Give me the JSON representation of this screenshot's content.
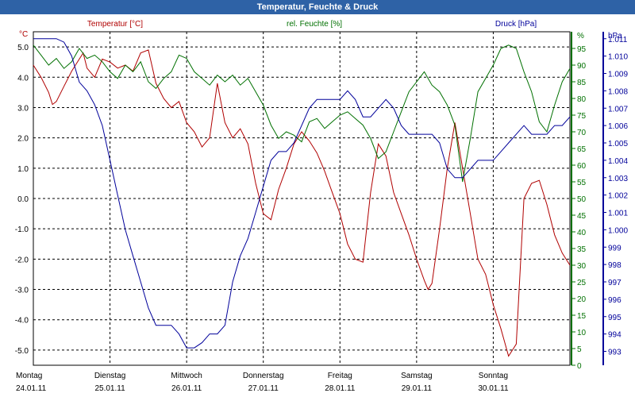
{
  "title": "Temperatur, Feuchte & Druck",
  "chart_data": {
    "type": "line",
    "title": "Temperatur, Feuchte & Druck",
    "x_labels": [
      {
        "day": "Montag",
        "date": "24.01.11"
      },
      {
        "day": "Dienstag",
        "date": "25.01.11"
      },
      {
        "day": "Mittwoch",
        "date": "26.01.11"
      },
      {
        "day": "Donnerstag",
        "date": "27.01.11"
      },
      {
        "day": "Freitag",
        "date": "28.01.11"
      },
      {
        "day": "Samstag",
        "date": "29.01.11"
      },
      {
        "day": "Sonntag",
        "date": "30.01.11"
      }
    ],
    "x_range": [
      0,
      7
    ],
    "grid": true,
    "axes": {
      "temperature": {
        "unit": "°C",
        "range": [
          -5.5,
          5.5
        ],
        "ticks": [
          "5.0",
          "4.0",
          "3.0",
          "2.0",
          "1.0",
          "0.0",
          "-1.0",
          "-2.0",
          "-3.0",
          "-4.0",
          "-5.0"
        ],
        "tick_values": [
          5,
          4,
          3,
          2,
          1,
          0,
          -1,
          -2,
          -3,
          -4,
          -5
        ],
        "color": "#b00000"
      },
      "humidity": {
        "unit": "%",
        "range": [
          0,
          100
        ],
        "ticks": [
          "95",
          "90",
          "85",
          "80",
          "75",
          "70",
          "65",
          "60",
          "55",
          "50",
          "45",
          "40",
          "35",
          "30",
          "25",
          "20",
          "15",
          "10",
          "5",
          "0"
        ],
        "tick_values": [
          95,
          90,
          85,
          80,
          75,
          70,
          65,
          60,
          55,
          50,
          45,
          40,
          35,
          30,
          25,
          20,
          15,
          10,
          5,
          0
        ],
        "color": "#007000"
      },
      "pressure": {
        "unit": "hPa",
        "range": [
          992.2,
          1011.4
        ],
        "ticks": [
          "1.011",
          "1.010",
          "1.009",
          "1.008",
          "1.007",
          "1.006",
          "1.005",
          "1.004",
          "1.003",
          "1.002",
          "1.001",
          "1.000",
          "999",
          "998",
          "997",
          "996",
          "995",
          "994",
          "993"
        ],
        "tick_values": [
          1011,
          1010,
          1009,
          1008,
          1007,
          1006,
          1005,
          1004,
          1003,
          1002,
          1001,
          1000,
          999,
          998,
          997,
          996,
          995,
          994,
          993
        ],
        "color": "#00009a"
      }
    },
    "series": [
      {
        "name": "Temperatur [°C]",
        "axis": "temperature",
        "color": "#b00000",
        "x": [
          0,
          0.1,
          0.2,
          0.25,
          0.3,
          0.4,
          0.5,
          0.6,
          0.65,
          0.7,
          0.8,
          0.9,
          1.0,
          1.1,
          1.2,
          1.3,
          1.4,
          1.5,
          1.6,
          1.7,
          1.8,
          1.9,
          2.0,
          2.1,
          2.2,
          2.3,
          2.4,
          2.5,
          2.6,
          2.7,
          2.8,
          2.9,
          3.0,
          3.1,
          3.2,
          3.3,
          3.4,
          3.5,
          3.6,
          3.7,
          3.8,
          3.9,
          4.0,
          4.1,
          4.2,
          4.3,
          4.4,
          4.5,
          4.6,
          4.7,
          4.8,
          4.9,
          5.0,
          5.1,
          5.15,
          5.2,
          5.3,
          5.4,
          5.5,
          5.6,
          5.7,
          5.8,
          5.9,
          6.0,
          6.1,
          6.2,
          6.25,
          6.3,
          6.4,
          6.5,
          6.6,
          6.7,
          6.8,
          6.9,
          7.0
        ],
        "y": [
          4.4,
          4.0,
          3.5,
          3.1,
          3.2,
          3.7,
          4.2,
          4.6,
          4.8,
          4.3,
          4.0,
          4.6,
          4.5,
          4.3,
          4.4,
          4.2,
          4.8,
          4.9,
          3.8,
          3.3,
          3.0,
          3.2,
          2.5,
          2.2,
          1.7,
          2.0,
          3.8,
          2.5,
          2.0,
          2.3,
          1.8,
          0.5,
          -0.5,
          -0.7,
          0.3,
          1.0,
          1.8,
          2.2,
          1.9,
          1.5,
          0.9,
          0.2,
          -0.5,
          -1.5,
          -2.0,
          -2.1,
          0.2,
          1.8,
          1.4,
          0.2,
          -0.5,
          -1.2,
          -2.0,
          -2.7,
          -3.0,
          -2.8,
          -1.0,
          1.0,
          2.5,
          1.0,
          -0.5,
          -2.0,
          -2.5,
          -3.5,
          -4.3,
          -5.2,
          -5.0,
          -4.8,
          0.0,
          0.5,
          0.6,
          -0.2,
          -1.2,
          -1.8,
          -2.2
        ]
      },
      {
        "name": "rel. Feuchte [%]",
        "axis": "humidity",
        "color": "#007000",
        "x": [
          0,
          0.1,
          0.2,
          0.3,
          0.4,
          0.5,
          0.6,
          0.7,
          0.8,
          0.9,
          1.0,
          1.1,
          1.2,
          1.3,
          1.4,
          1.5,
          1.6,
          1.7,
          1.8,
          1.9,
          2.0,
          2.1,
          2.2,
          2.3,
          2.4,
          2.5,
          2.6,
          2.7,
          2.8,
          2.9,
          3.0,
          3.1,
          3.2,
          3.3,
          3.4,
          3.5,
          3.6,
          3.7,
          3.8,
          3.9,
          4.0,
          4.1,
          4.2,
          4.3,
          4.4,
          4.5,
          4.6,
          4.7,
          4.8,
          4.9,
          5.0,
          5.1,
          5.2,
          5.3,
          5.4,
          5.5,
          5.6,
          5.7,
          5.8,
          5.9,
          6.0,
          6.1,
          6.2,
          6.3,
          6.4,
          6.5,
          6.6,
          6.7,
          6.8,
          6.9,
          7.0
        ],
        "y": [
          96,
          93,
          90,
          92,
          89,
          91,
          95,
          92,
          93,
          91,
          88,
          86,
          90,
          88,
          91,
          85,
          83,
          86,
          88,
          93,
          92,
          88,
          86,
          84,
          87,
          85,
          87,
          84,
          86,
          82,
          78,
          72,
          68,
          70,
          69,
          67,
          73,
          74,
          71,
          73,
          75,
          76,
          74,
          72,
          68,
          62,
          64,
          70,
          76,
          82,
          85,
          88,
          84,
          82,
          78,
          72,
          55,
          68,
          82,
          86,
          90,
          95,
          96,
          95,
          88,
          82,
          73,
          70,
          78,
          85,
          89
        ]
      },
      {
        "name": "Druck [hPa]",
        "axis": "pressure",
        "color": "#00009a",
        "x": [
          0,
          0.1,
          0.2,
          0.3,
          0.4,
          0.5,
          0.6,
          0.7,
          0.8,
          0.9,
          1.0,
          1.1,
          1.2,
          1.3,
          1.4,
          1.5,
          1.6,
          1.7,
          1.8,
          1.9,
          2.0,
          2.1,
          2.2,
          2.3,
          2.4,
          2.5,
          2.6,
          2.7,
          2.8,
          2.9,
          3.0,
          3.1,
          3.2,
          3.3,
          3.4,
          3.5,
          3.6,
          3.7,
          3.8,
          3.9,
          4.0,
          4.1,
          4.2,
          4.3,
          4.4,
          4.5,
          4.6,
          4.7,
          4.8,
          4.9,
          5.0,
          5.1,
          5.2,
          5.3,
          5.4,
          5.5,
          5.6,
          5.7,
          5.8,
          5.9,
          6.0,
          6.1,
          6.2,
          6.3,
          6.4,
          6.5,
          6.6,
          6.7,
          6.8,
          6.9,
          7.0
        ],
        "y": [
          1011,
          1011,
          1011,
          1011,
          1010.8,
          1010,
          1008.5,
          1008,
          1007.2,
          1006,
          1004,
          1002,
          1000,
          998.5,
          997,
          995.5,
          994.5,
          994.5,
          994.5,
          994,
          993.2,
          993.2,
          993.5,
          994,
          994,
          994.5,
          997,
          998.5,
          999.5,
          1001,
          1002.5,
          1004,
          1004.5,
          1004.5,
          1005,
          1006,
          1007,
          1007.5,
          1007.5,
          1007.5,
          1007.5,
          1008,
          1007.5,
          1006.5,
          1006.5,
          1007,
          1007.5,
          1007,
          1006,
          1005.5,
          1005.5,
          1005.5,
          1005.5,
          1005,
          1003.5,
          1003,
          1003,
          1003.5,
          1004,
          1004,
          1004,
          1004.5,
          1005,
          1005.5,
          1006,
          1005.5,
          1005.5,
          1005.5,
          1006,
          1006,
          1006.5
        ]
      }
    ]
  }
}
